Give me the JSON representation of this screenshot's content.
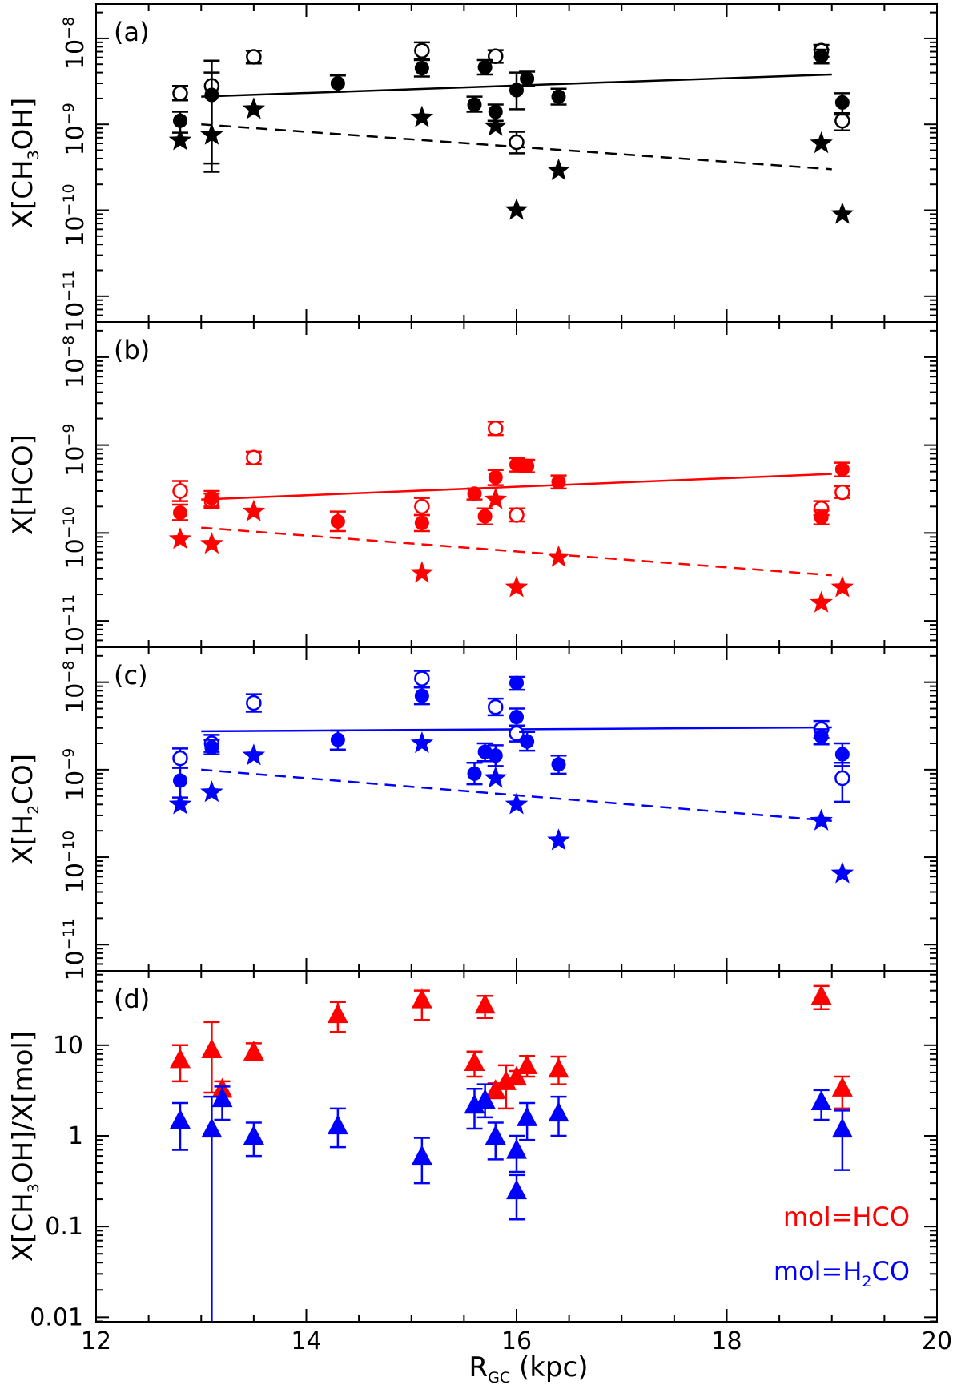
{
  "colors": {
    "black": "#000000",
    "red": "#ff0000",
    "blue": "#0000ff"
  },
  "chart_data": {
    "type": "scatter",
    "xlabel_main": "R",
    "xlabel_sub": "GC",
    "xlabel_unit": " (kpc)",
    "xlim": [
      12,
      20
    ],
    "xticks": [
      "12",
      "14",
      "16",
      "18",
      "20"
    ],
    "panels": [
      {
        "id": "a",
        "label": "(a)",
        "color": "#000000",
        "ylabel": {
          "pre": "X[CH",
          "sub": "3",
          "post": "OH]"
        },
        "ylim_log10": [
          -11.3,
          -7.6
        ],
        "yticks": [
          {
            "base": "10",
            "exp": "−8"
          },
          {
            "base": "10",
            "exp": "−9"
          },
          {
            "base": "10",
            "exp": "−10"
          },
          {
            "base": "10",
            "exp": "−11"
          }
        ],
        "ytick_exps": [
          -8,
          -9,
          -10,
          -11
        ],
        "filled": [
          {
            "x": 12.8,
            "y": 1.1e-09,
            "elo": 8e-10,
            "ehi": 1.4e-09
          },
          {
            "x": 13.1,
            "y": 2.2e-09,
            "elo": 3.5e-10,
            "ehi": 5.5e-09
          },
          {
            "x": 14.3,
            "y": 3e-09,
            "elo": 2.4e-09,
            "ehi": 3.7e-09
          },
          {
            "x": 15.1,
            "y": 4.5e-09,
            "elo": 3.6e-09,
            "ehi": 5.6e-09
          },
          {
            "x": 15.6,
            "y": 1.7e-09,
            "elo": 1.4e-09,
            "ehi": 2.1e-09
          },
          {
            "x": 15.7,
            "y": 4.6e-09,
            "elo": 3.8e-09,
            "ehi": 5.6e-09
          },
          {
            "x": 15.8,
            "y": 1.4e-09,
            "elo": 1.1e-09,
            "ehi": 1.7e-09
          },
          {
            "x": 16.0,
            "y": 2.5e-09,
            "elo": 1.5e-09,
            "ehi": 4e-09
          },
          {
            "x": 16.1,
            "y": 3.4e-09,
            "elo": 2.8e-09,
            "ehi": 4.1e-09
          },
          {
            "x": 16.4,
            "y": 2.1e-09,
            "elo": 1.7e-09,
            "ehi": 2.6e-09
          },
          {
            "x": 18.9,
            "y": 6.2e-09,
            "elo": 5.1e-09,
            "ehi": 7.4e-09
          },
          {
            "x": 19.1,
            "y": 1.8e-09,
            "elo": 1.3e-09,
            "ehi": 2.3e-09
          }
        ],
        "open": [
          {
            "x": 12.8,
            "y": 2.3e-09,
            "elo": 1.9e-09,
            "ehi": 2.8e-09
          },
          {
            "x": 13.1,
            "y": 2.8e-09,
            "elo": 2.8e-10,
            "ehi": 4e-09
          },
          {
            "x": 13.5,
            "y": 6.1e-09,
            "elo": 5.1e-09,
            "ehi": 7.2e-09
          },
          {
            "x": 15.1,
            "y": 7.2e-09,
            "elo": 5.7e-09,
            "ehi": 9e-09
          },
          {
            "x": 15.8,
            "y": 6.2e-09,
            "elo": 5.2e-09,
            "ehi": 7.3e-09
          },
          {
            "x": 16.0,
            "y": 6.2e-10,
            "elo": 4.6e-10,
            "ehi": 8.2e-10
          },
          {
            "x": 18.9,
            "y": 7.2e-09,
            "elo": 6.1e-09,
            "ehi": 8.4e-09
          },
          {
            "x": 19.1,
            "y": 1.1e-09,
            "elo": 8.5e-10,
            "ehi": 1.35e-09
          }
        ],
        "stars": [
          {
            "x": 12.8,
            "y": 6.5e-10
          },
          {
            "x": 13.1,
            "y": 7.5e-10
          },
          {
            "x": 13.5,
            "y": 1.5e-09
          },
          {
            "x": 15.1,
            "y": 1.2e-09
          },
          {
            "x": 15.8,
            "y": 9.5e-10
          },
          {
            "x": 16.0,
            "y": 1e-10
          },
          {
            "x": 16.4,
            "y": 2.9e-10
          },
          {
            "x": 18.9,
            "y": 6e-10
          },
          {
            "x": 19.1,
            "y": 9e-11
          }
        ],
        "fit_solid": [
          [
            13.0,
            2.1e-09
          ],
          [
            19.0,
            3.8e-09
          ]
        ],
        "fit_dashed": [
          [
            13.0,
            1e-09
          ],
          [
            19.0,
            3e-10
          ]
        ]
      },
      {
        "id": "b",
        "label": "(b)",
        "color": "#ff0000",
        "ylabel": {
          "pre": "X[HCO]",
          "sub": "",
          "post": ""
        },
        "ylim_log10": [
          -11.3,
          -7.6
        ],
        "yticks": [
          {
            "base": "10",
            "exp": "−8"
          },
          {
            "base": "10",
            "exp": "−9"
          },
          {
            "base": "10",
            "exp": "−10"
          },
          {
            "base": "10",
            "exp": "−11"
          }
        ],
        "ytick_exps": [
          -8,
          -9,
          -10,
          -11
        ],
        "filled": [
          {
            "x": 12.8,
            "y": 1.7e-10,
            "elo": 1.4e-10,
            "ehi": 2.1e-10
          },
          {
            "x": 13.1,
            "y": 2.5e-10,
            "elo": 2e-10,
            "ehi": 3e-10
          },
          {
            "x": 14.3,
            "y": 1.35e-10,
            "elo": 1.05e-10,
            "ehi": 1.75e-10
          },
          {
            "x": 15.1,
            "y": 1.3e-10,
            "elo": 1.05e-10,
            "ehi": 1.6e-10
          },
          {
            "x": 15.6,
            "y": 2.8e-10,
            "elo": 2.4e-10,
            "ehi": 3.2e-10
          },
          {
            "x": 15.7,
            "y": 1.55e-10,
            "elo": 1.25e-10,
            "ehi": 1.9e-10
          },
          {
            "x": 15.8,
            "y": 4.3e-10,
            "elo": 3.5e-10,
            "ehi": 5.2e-10
          },
          {
            "x": 16.0,
            "y": 6e-10,
            "elo": 5e-10,
            "ehi": 7.1e-10
          },
          {
            "x": 16.1,
            "y": 5.8e-10,
            "elo": 4.9e-10,
            "ehi": 6.8e-10
          },
          {
            "x": 16.4,
            "y": 3.8e-10,
            "elo": 3.2e-10,
            "ehi": 4.5e-10
          },
          {
            "x": 18.9,
            "y": 1.5e-10,
            "elo": 1.25e-10,
            "ehi": 1.8e-10
          },
          {
            "x": 19.1,
            "y": 5.3e-10,
            "elo": 4.4e-10,
            "ehi": 6.3e-10
          }
        ],
        "open": [
          {
            "x": 12.8,
            "y": 3e-10,
            "elo": 2.3e-10,
            "ehi": 3.9e-10
          },
          {
            "x": 13.1,
            "y": 2.3e-10,
            "elo": 1.9e-10,
            "ehi": 2.8e-10
          },
          {
            "x": 13.5,
            "y": 7.2e-10,
            "elo": 6.1e-10,
            "ehi": 8.4e-10
          },
          {
            "x": 15.1,
            "y": 2e-10,
            "elo": 1.6e-10,
            "ehi": 2.5e-10
          },
          {
            "x": 15.8,
            "y": 1.55e-09,
            "elo": 1.3e-09,
            "ehi": 1.85e-09
          },
          {
            "x": 16.0,
            "y": 1.6e-10,
            "elo": 1.35e-10,
            "ehi": 1.9e-10
          },
          {
            "x": 18.9,
            "y": 1.9e-10,
            "elo": 1.6e-10,
            "ehi": 2.3e-10
          },
          {
            "x": 19.1,
            "y": 2.9e-10,
            "elo": 2.5e-10,
            "ehi": 3.4e-10
          }
        ],
        "stars": [
          {
            "x": 12.8,
            "y": 8.5e-11
          },
          {
            "x": 13.1,
            "y": 7.5e-11
          },
          {
            "x": 13.5,
            "y": 1.75e-10
          },
          {
            "x": 15.1,
            "y": 3.5e-11
          },
          {
            "x": 15.8,
            "y": 2.4e-10
          },
          {
            "x": 16.0,
            "y": 2.4e-11
          },
          {
            "x": 16.4,
            "y": 5.3e-11
          },
          {
            "x": 18.9,
            "y": 1.6e-11
          },
          {
            "x": 19.1,
            "y": 2.4e-11
          }
        ],
        "fit_solid": [
          [
            13.0,
            2.4e-10
          ],
          [
            19.0,
            4.7e-10
          ]
        ],
        "fit_dashed": [
          [
            13.0,
            1.15e-10
          ],
          [
            19.0,
            3.3e-11
          ]
        ]
      },
      {
        "id": "c",
        "label": "(c)",
        "color": "#0000ff",
        "ylabel": {
          "pre": "X[H",
          "sub": "2",
          "post": "CO]"
        },
        "ylim_log10": [
          -11.3,
          -7.6
        ],
        "yticks": [
          {
            "base": "10",
            "exp": "−8"
          },
          {
            "base": "10",
            "exp": "−9"
          },
          {
            "base": "10",
            "exp": "−10"
          },
          {
            "base": "10",
            "exp": "−11"
          }
        ],
        "ytick_exps": [
          -8,
          -9,
          -10,
          -11
        ],
        "filled": [
          {
            "x": 12.8,
            "y": 7.5e-10,
            "elo": 4.8e-10,
            "ehi": 1.05e-09
          },
          {
            "x": 13.1,
            "y": 1.8e-09,
            "elo": 1.5e-09,
            "ehi": 2.2e-09
          },
          {
            "x": 14.3,
            "y": 2.2e-09,
            "elo": 1.7e-09,
            "ehi": 2.8e-09
          },
          {
            "x": 15.1,
            "y": 7e-09,
            "elo": 5.6e-09,
            "ehi": 8.7e-09
          },
          {
            "x": 15.6,
            "y": 9e-10,
            "elo": 6.8e-10,
            "ehi": 1.2e-09
          },
          {
            "x": 15.7,
            "y": 1.6e-09,
            "elo": 1.25e-09,
            "ehi": 2e-09
          },
          {
            "x": 15.8,
            "y": 1.45e-09,
            "elo": 1.1e-09,
            "ehi": 1.9e-09
          },
          {
            "x": 16.0,
            "y": 4e-09,
            "elo": 3.2e-09,
            "ehi": 5e-09
          },
          {
            "x": 16.0,
            "y": 9.8e-09,
            "elo": 8.2e-09,
            "ehi": 1.15e-08
          },
          {
            "x": 16.1,
            "y": 2.1e-09,
            "elo": 1.65e-09,
            "ehi": 2.7e-09
          },
          {
            "x": 16.4,
            "y": 1.15e-09,
            "elo": 9e-10,
            "ehi": 1.45e-09
          },
          {
            "x": 18.9,
            "y": 2.4e-09,
            "elo": 1.95e-09,
            "ehi": 2.9e-09
          },
          {
            "x": 19.1,
            "y": 1.5e-09,
            "elo": 1.1e-09,
            "ehi": 2e-09
          }
        ],
        "open": [
          {
            "x": 12.8,
            "y": 1.35e-09,
            "elo": 1.05e-09,
            "ehi": 1.75e-09
          },
          {
            "x": 13.1,
            "y": 2e-09,
            "elo": 1.6e-09,
            "ehi": 2.5e-09
          },
          {
            "x": 13.5,
            "y": 5.8e-09,
            "elo": 4.6e-09,
            "ehi": 7.3e-09
          },
          {
            "x": 15.1,
            "y": 1.1e-08,
            "elo": 8.8e-09,
            "ehi": 1.35e-08
          },
          {
            "x": 15.8,
            "y": 5.2e-09,
            "elo": 4.2e-09,
            "ehi": 6.5e-09
          },
          {
            "x": 16.0,
            "y": 2.6e-09,
            "elo": 2.1e-09,
            "ehi": 3.2e-09
          },
          {
            "x": 18.9,
            "y": 2.9e-09,
            "elo": 2.3e-09,
            "ehi": 3.6e-09
          },
          {
            "x": 19.1,
            "y": 8e-10,
            "elo": 4.3e-10,
            "ehi": 1.2e-09
          }
        ],
        "stars": [
          {
            "x": 12.8,
            "y": 4e-10
          },
          {
            "x": 13.1,
            "y": 5.5e-10
          },
          {
            "x": 13.5,
            "y": 1.45e-09
          },
          {
            "x": 15.1,
            "y": 2e-09
          },
          {
            "x": 15.8,
            "y": 8e-10
          },
          {
            "x": 16.0,
            "y": 4e-10
          },
          {
            "x": 16.4,
            "y": 1.55e-10
          },
          {
            "x": 18.9,
            "y": 2.6e-10
          },
          {
            "x": 19.1,
            "y": 6.5e-11
          }
        ],
        "fit_solid": [
          [
            13.0,
            2.75e-09
          ],
          [
            19.0,
            3.05e-09
          ]
        ],
        "fit_dashed": [
          [
            13.0,
            1e-09
          ],
          [
            19.0,
            2.6e-10
          ]
        ]
      },
      {
        "id": "d",
        "label": "(d)",
        "ylabel": {
          "pre": "X[CH",
          "sub": "3",
          "post": "OH]/X[mol]"
        },
        "ylim_log10": [
          -2.05,
          1.82
        ],
        "yticks_plain": [
          "10",
          "1",
          "0.1",
          "0.01"
        ],
        "ytick_exps": [
          1,
          0,
          -1,
          -2
        ],
        "series": [
          {
            "name": "mol=HCO",
            "color": "#ff0000",
            "points": [
              {
                "x": 12.8,
                "y": 7.0,
                "elo": 4.0,
                "ehi": 10.0
              },
              {
                "x": 13.1,
                "y": 9.0,
                "elo": 3.0,
                "ehi": 18.0
              },
              {
                "x": 13.2,
                "y": 3.3,
                "elo": 2.7,
                "ehi": 4.0
              },
              {
                "x": 13.5,
                "y": 8.5,
                "elo": 6.8,
                "ehi": 10.5
              },
              {
                "x": 14.3,
                "y": 22.0,
                "elo": 14.0,
                "ehi": 30.0
              },
              {
                "x": 15.1,
                "y": 32.0,
                "elo": 19.0,
                "ehi": 40.0
              },
              {
                "x": 15.7,
                "y": 28.0,
                "elo": 20.0,
                "ehi": 35.0
              },
              {
                "x": 15.6,
                "y": 6.5,
                "elo": 4.5,
                "ehi": 8.5
              },
              {
                "x": 15.8,
                "y": 3.2,
                "elo": 2.6,
                "ehi": 3.8
              },
              {
                "x": 15.9,
                "y": 4.0,
                "elo": 2.0,
                "ehi": 6.0
              },
              {
                "x": 16.0,
                "y": 4.5,
                "elo": 3.8,
                "ehi": 5.2
              },
              {
                "x": 16.1,
                "y": 6.0,
                "elo": 4.5,
                "ehi": 7.6
              },
              {
                "x": 16.4,
                "y": 5.5,
                "elo": 3.7,
                "ehi": 7.5
              },
              {
                "x": 18.9,
                "y": 35.0,
                "elo": 25.0,
                "ehi": 45.0
              },
              {
                "x": 19.1,
                "y": 3.4,
                "elo": 2.0,
                "ehi": 4.5
              }
            ]
          },
          {
            "name": "mol=H₂CO",
            "color": "#0000ff",
            "points": [
              {
                "x": 12.8,
                "y": 1.5,
                "elo": 0.7,
                "ehi": 2.3
              },
              {
                "x": 13.1,
                "y": 1.2,
                "elo": 0.001,
                "ehi": 2.7
              },
              {
                "x": 13.2,
                "y": 2.6,
                "elo": 1.5,
                "ehi": 3.5
              },
              {
                "x": 13.5,
                "y": 1.0,
                "elo": 0.6,
                "ehi": 1.4
              },
              {
                "x": 14.3,
                "y": 1.3,
                "elo": 0.75,
                "ehi": 2.0
              },
              {
                "x": 15.1,
                "y": 0.6,
                "elo": 0.3,
                "ehi": 0.95
              },
              {
                "x": 15.6,
                "y": 2.2,
                "elo": 1.2,
                "ehi": 3.3
              },
              {
                "x": 15.7,
                "y": 2.5,
                "elo": 1.6,
                "ehi": 3.7
              },
              {
                "x": 15.8,
                "y": 1.0,
                "elo": 0.55,
                "ehi": 1.4
              },
              {
                "x": 16.0,
                "y": 0.7,
                "elo": 0.4,
                "ehi": 1.0
              },
              {
                "x": 16.0,
                "y": 0.25,
                "elo": 0.12,
                "ehi": 0.37
              },
              {
                "x": 16.1,
                "y": 1.6,
                "elo": 0.9,
                "ehi": 2.3
              },
              {
                "x": 16.4,
                "y": 1.8,
                "elo": 1.0,
                "ehi": 2.7
              },
              {
                "x": 18.9,
                "y": 2.4,
                "elo": 1.5,
                "ehi": 3.2
              },
              {
                "x": 19.1,
                "y": 1.2,
                "elo": 0.42,
                "ehi": 1.9
              }
            ]
          }
        ],
        "legend": [
          {
            "pre": "mol=HCO",
            "sub": "",
            "post": "",
            "color": "#ff0000"
          },
          {
            "pre": "mol=H",
            "sub": "2",
            "post": "CO",
            "color": "#0000ff"
          }
        ]
      }
    ]
  }
}
